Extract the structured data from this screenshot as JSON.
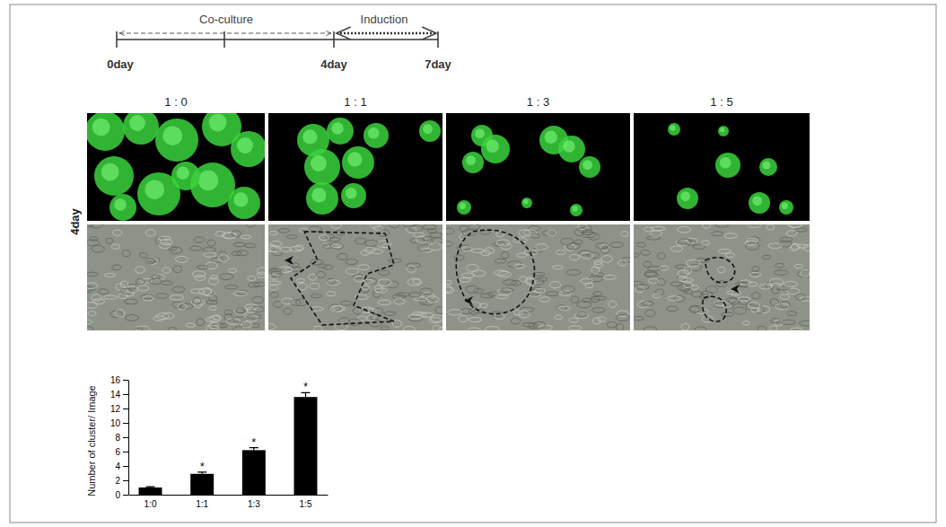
{
  "timeline": {
    "phases": [
      "Co-culture",
      "Induction"
    ],
    "ticks": [
      "0day",
      "4day",
      "7day"
    ]
  },
  "panels": {
    "row_label": "4day",
    "titles": [
      "1 : 0",
      "1 : 1",
      "1 : 3",
      "1 : 5"
    ]
  },
  "chart_data": {
    "type": "bar",
    "y_label": "Number of cluster/ Image",
    "categories": [
      "1:0",
      "1:1",
      "1:3",
      "1:5"
    ],
    "values": [
      1,
      2.9,
      6.2,
      13.6
    ],
    "errors": [
      0.1,
      0.25,
      0.35,
      0.6
    ],
    "annotations": [
      null,
      "*",
      "*",
      "*"
    ],
    "color": "#000000",
    "ylim": [
      0,
      16
    ],
    "yticks": [
      0,
      2,
      4,
      6,
      8,
      10,
      12,
      14,
      16
    ]
  }
}
